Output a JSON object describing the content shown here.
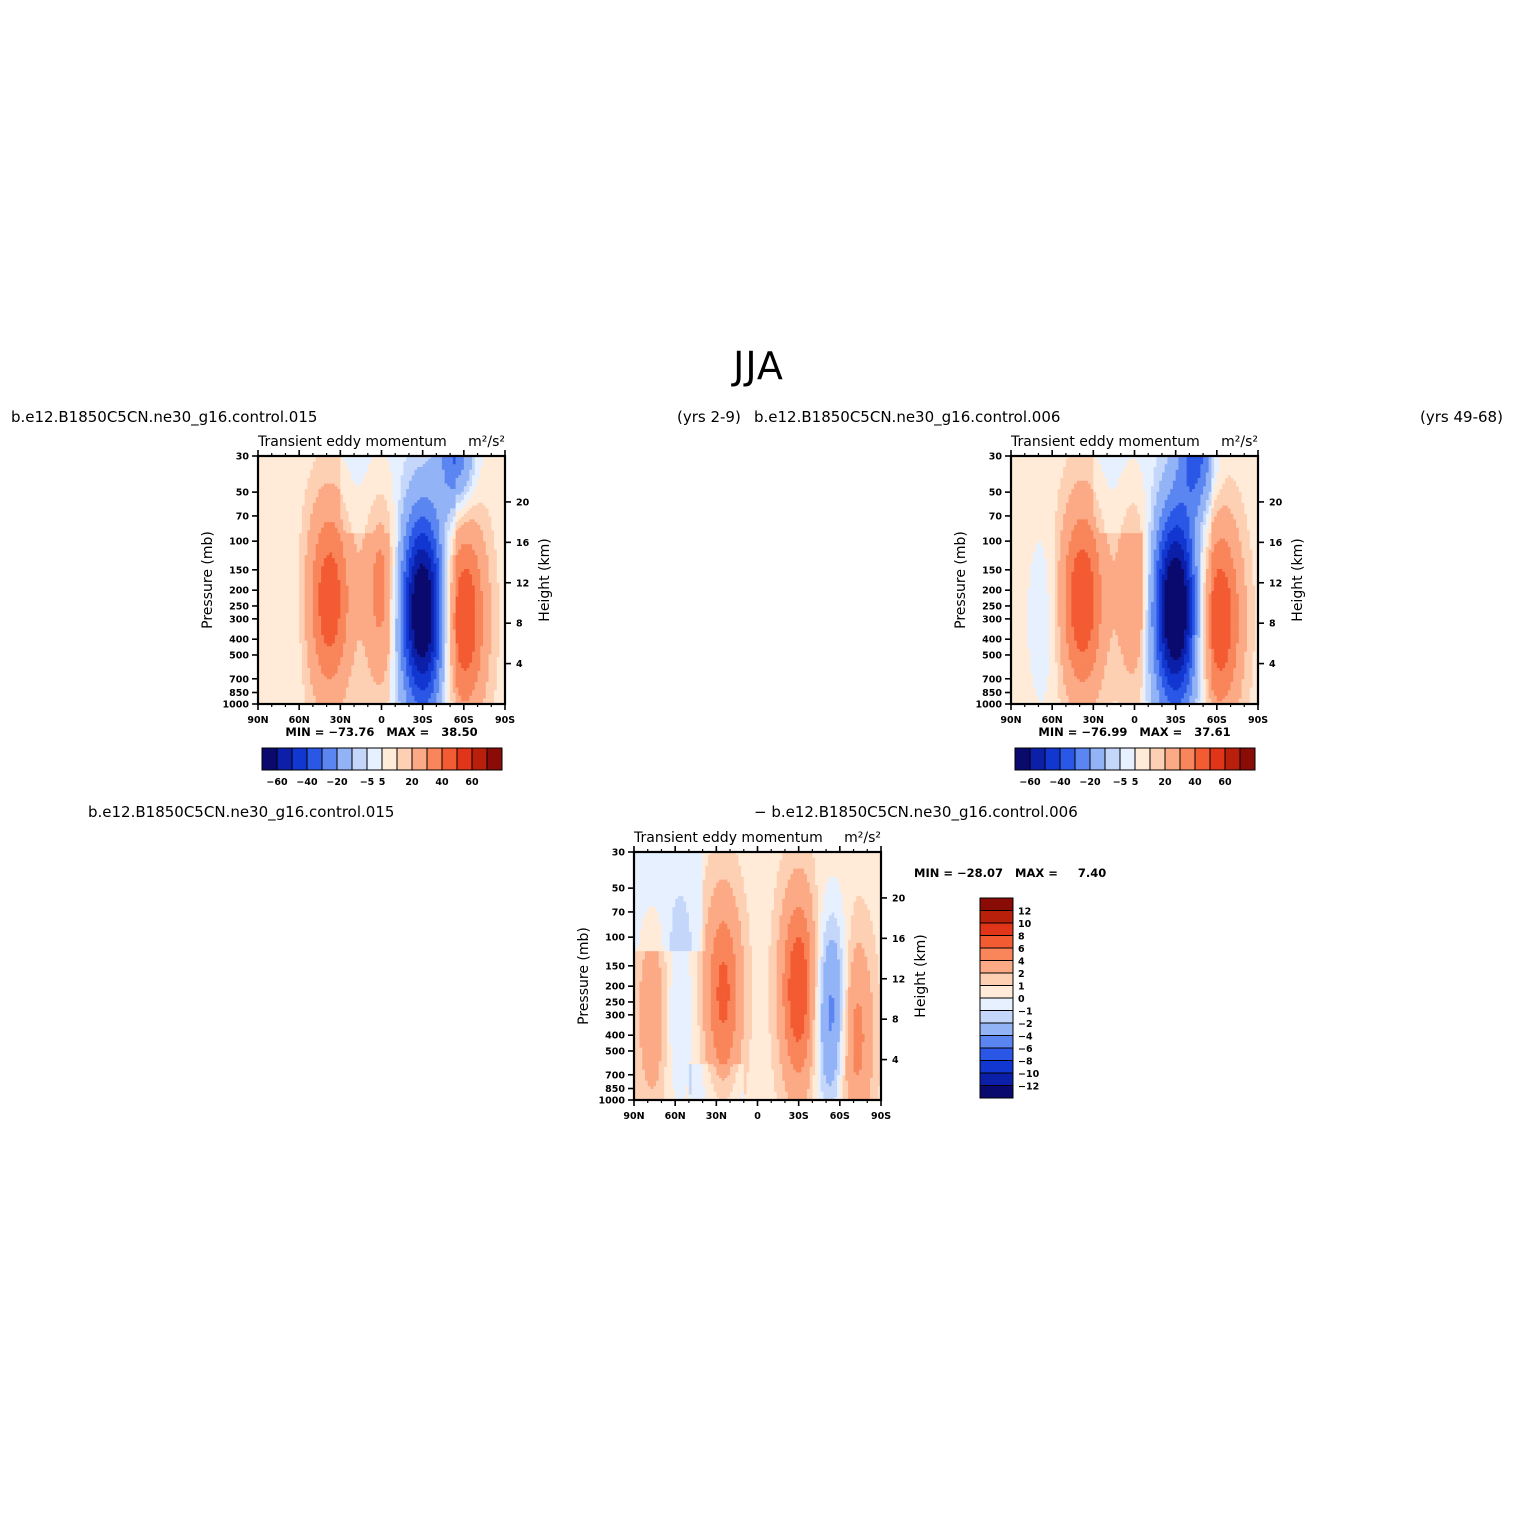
{
  "figure": {
    "title": "JJA",
    "panels": [
      {
        "case": "b.e12.B1850C5CN.ne30_g16.control.015",
        "years": "(yrs 2-9)",
        "variable": "Transient eddy momentum",
        "units": "m²/s²",
        "min_max": "MIN = −73.76   MAX =   38.50"
      },
      {
        "case": "b.e12.B1850C5CN.ne30_g16.control.006",
        "years": "(yrs 49-68)",
        "variable": "Transient eddy momentum",
        "units": "m²/s²",
        "min_max": "MIN = −76.99   MAX =   37.61"
      },
      {
        "case_a": "b.e12.B1850C5CN.ne30_g16.control.015",
        "case_b": "− b.e12.B1850C5CN.ne30_g16.control.006",
        "variable": "Transient eddy momentum",
        "units": "m²/s²",
        "min_max": "MIN = −28.07   MAX =     7.40"
      }
    ],
    "axes": {
      "ylabel": "Pressure (mb)",
      "ylabel_right": "Height (km)",
      "pressure_ticks": [
        30,
        50,
        70,
        100,
        150,
        200,
        250,
        300,
        400,
        500,
        700,
        850,
        1000
      ],
      "height_ticks": [
        4,
        8,
        12,
        16,
        20
      ],
      "lat_ticks": [
        "90N",
        "60N",
        "30N",
        "0",
        "30S",
        "60S",
        "90S"
      ]
    },
    "colorbar_main": {
      "labels": [
        "−60",
        "−40",
        "−20",
        "−5",
        "5",
        "20",
        "40",
        "60"
      ],
      "colors": [
        "#0a0a6e",
        "#0b1fa8",
        "#1236d0",
        "#2a57e6",
        "#5b86f2",
        "#93b3f7",
        "#c4d6fa",
        "#e6f0ff",
        "#ffebd8",
        "#fdd0b3",
        "#fcaa86",
        "#f9855a",
        "#f35b33",
        "#e03518",
        "#b8200c",
        "#8a0c07"
      ]
    },
    "colorbar_diff": {
      "labels": [
        "12",
        "10",
        "8",
        "6",
        "4",
        "2",
        "1",
        "0",
        "−1",
        "−2",
        "−4",
        "−6",
        "−8",
        "−10",
        "−12"
      ],
      "colors": [
        "#8a0c07",
        "#b8200c",
        "#e03518",
        "#f35b33",
        "#f9855a",
        "#fcaa86",
        "#fdd0b3",
        "#ffebd8",
        "#e6f0ff",
        "#c4d6fa",
        "#93b3f7",
        "#5b86f2",
        "#2a57e6",
        "#1236d0",
        "#0b1fa8",
        "#0a0a6e"
      ]
    }
  },
  "chart_data": [
    {
      "type": "heatmap",
      "title": "Transient eddy momentum",
      "subtitle": "b.e12.B1850C5CN.ne30_g16.control.015 (yrs 2-9)",
      "ylabel": "Pressure (mb)",
      "xlim": [
        -90,
        90
      ],
      "ylim": [
        1000,
        30
      ],
      "min": -73.76,
      "max": 38.5,
      "features": [
        {
          "lat": 38,
          "p": 230,
          "value": 35
        },
        {
          "lat": 0,
          "p": 200,
          "value": 22
        },
        {
          "lat": -30,
          "p": 270,
          "value": -73.76
        },
        {
          "lat": -60,
          "p": 300,
          "value": 38.5
        },
        {
          "lat": -55,
          "p": 30,
          "value": -30
        },
        {
          "lat": 66,
          "p": 300,
          "value": -3
        }
      ]
    },
    {
      "type": "heatmap",
      "title": "Transient eddy momentum",
      "subtitle": "b.e12.B1850C5CN.ne30_g16.control.006 (yrs 49-68)",
      "ylabel": "Pressure (mb)",
      "xlim": [
        -90,
        90
      ],
      "ylim": [
        1000,
        30
      ],
      "min": -76.99,
      "max": 37.61,
      "features": [
        {
          "lat": 38,
          "p": 230,
          "value": 37
        },
        {
          "lat": 0,
          "p": 200,
          "value": 18
        },
        {
          "lat": -30,
          "p": 260,
          "value": -76.99
        },
        {
          "lat": -62,
          "p": 300,
          "value": 37.61
        },
        {
          "lat": -45,
          "p": 30,
          "value": -30
        },
        {
          "lat": 66,
          "p": 300,
          "value": -6
        }
      ]
    },
    {
      "type": "heatmap",
      "title": "Transient eddy momentum",
      "subtitle": "b.e12.B1850C5CN.ne30_g16.control.015 − b.e12.B1850C5CN.ne30_g16.control.006",
      "ylabel": "Pressure (mb)",
      "xlim": [
        -90,
        90
      ],
      "ylim": [
        1000,
        30
      ],
      "min": -28.07,
      "max": 7.4,
      "features": [
        {
          "lat": 25,
          "p": 220,
          "value": 6
        },
        {
          "lat": -30,
          "p": 210,
          "value": 7.4
        },
        {
          "lat": -55,
          "p": 300,
          "value": -6
        },
        {
          "lat": -70,
          "p": 400,
          "value": 5
        },
        {
          "lat": 75,
          "p": 300,
          "value": 3
        },
        {
          "lat": 60,
          "p": 300,
          "value": -2
        }
      ]
    }
  ]
}
